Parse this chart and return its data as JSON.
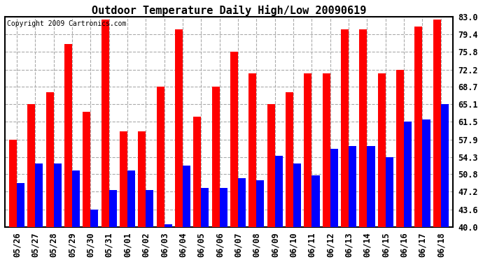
{
  "title": "Outdoor Temperature Daily High/Low 20090619",
  "copyright": "Copyright 2009 Cartronics.com",
  "dates": [
    "05/26",
    "05/27",
    "05/28",
    "05/29",
    "05/30",
    "05/31",
    "06/01",
    "06/02",
    "06/03",
    "06/04",
    "06/05",
    "06/06",
    "06/07",
    "06/08",
    "06/09",
    "06/10",
    "06/11",
    "06/12",
    "06/13",
    "06/14",
    "06/15",
    "06/16",
    "06/17",
    "06/18"
  ],
  "highs": [
    57.9,
    65.1,
    67.5,
    77.5,
    63.5,
    82.5,
    59.5,
    59.5,
    68.7,
    80.5,
    62.5,
    68.7,
    75.8,
    71.5,
    65.1,
    67.5,
    71.5,
    71.5,
    80.5,
    80.5,
    71.5,
    72.2,
    81.0,
    82.5
  ],
  "lows": [
    49.0,
    53.0,
    53.0,
    51.5,
    43.5,
    47.5,
    51.5,
    47.5,
    40.5,
    52.5,
    48.0,
    48.0,
    50.0,
    49.5,
    54.5,
    53.0,
    50.5,
    56.0,
    56.5,
    56.5,
    54.3,
    61.5,
    62.0,
    65.1
  ],
  "ymin": 40.0,
  "ymax": 83.0,
  "yticks": [
    40.0,
    43.6,
    47.2,
    50.8,
    54.3,
    57.9,
    61.5,
    65.1,
    68.7,
    72.2,
    75.8,
    79.4,
    83.0
  ],
  "bar_color_high": "#ff0000",
  "bar_color_low": "#0000ff",
  "bg_color": "#ffffff",
  "plot_bg_color": "#ffffff",
  "grid_color": "#aaaaaa",
  "title_fontsize": 11,
  "tick_fontsize": 8.5,
  "bar_bottom": 40.0
}
